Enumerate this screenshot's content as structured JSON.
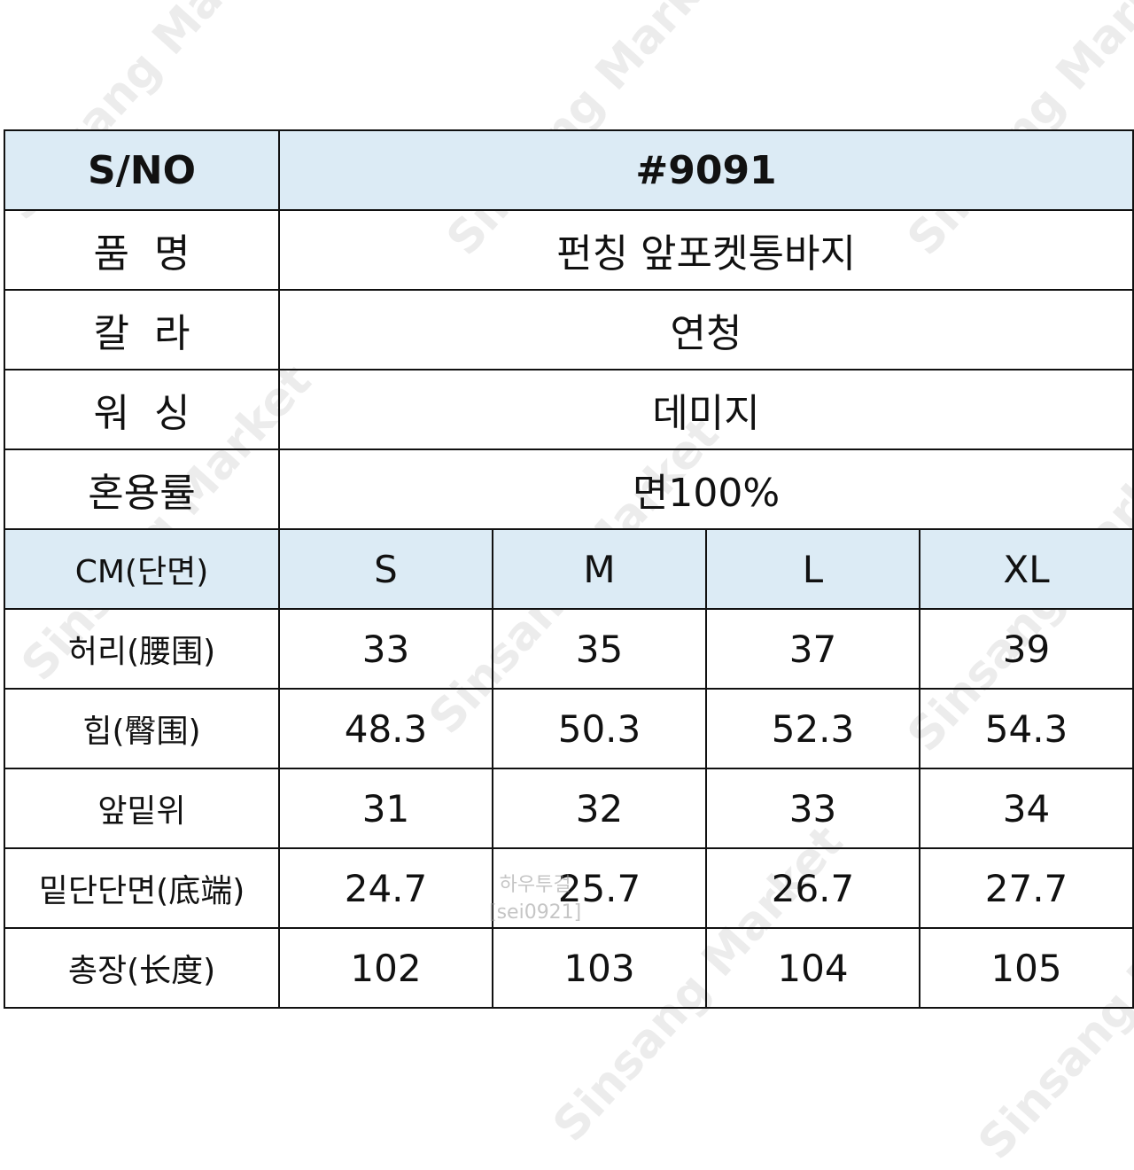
{
  "info_rows": [
    {
      "label": "S/NO",
      "value": "#9091"
    },
    {
      "label": "품  명",
      "value": "펀칭 앞포켓통바지"
    },
    {
      "label": "칼  라",
      "value": "연청"
    },
    {
      "label": "워  싱",
      "value": "데미지"
    },
    {
      "label": "혼용률",
      "value": "면100%"
    }
  ],
  "size_header": {
    "label": "CM(단면)",
    "sizes": [
      "S",
      "M",
      "L",
      "XL"
    ]
  },
  "measurements": [
    {
      "label": "허리(腰围)",
      "values": [
        "33",
        "35",
        "37",
        "39"
      ]
    },
    {
      "label": "힙(臀围)",
      "values": [
        "48.3",
        "50.3",
        "52.3",
        "54.3"
      ]
    },
    {
      "label": "앞밑위",
      "values": [
        "31",
        "32",
        "33",
        "34"
      ]
    },
    {
      "label": "밑단단면(底端)",
      "values": [
        "24.7",
        "25.7",
        "26.7",
        "27.7"
      ]
    },
    {
      "label": "총장(长度)",
      "values": [
        "102",
        "103",
        "104",
        "105"
      ]
    }
  ],
  "watermark": {
    "brand": "Sinsang Market",
    "seller": "하우투걸",
    "seller_id": "[sei0921]"
  },
  "colors": {
    "header_bg": "#dcebf5",
    "border": "#111111"
  }
}
